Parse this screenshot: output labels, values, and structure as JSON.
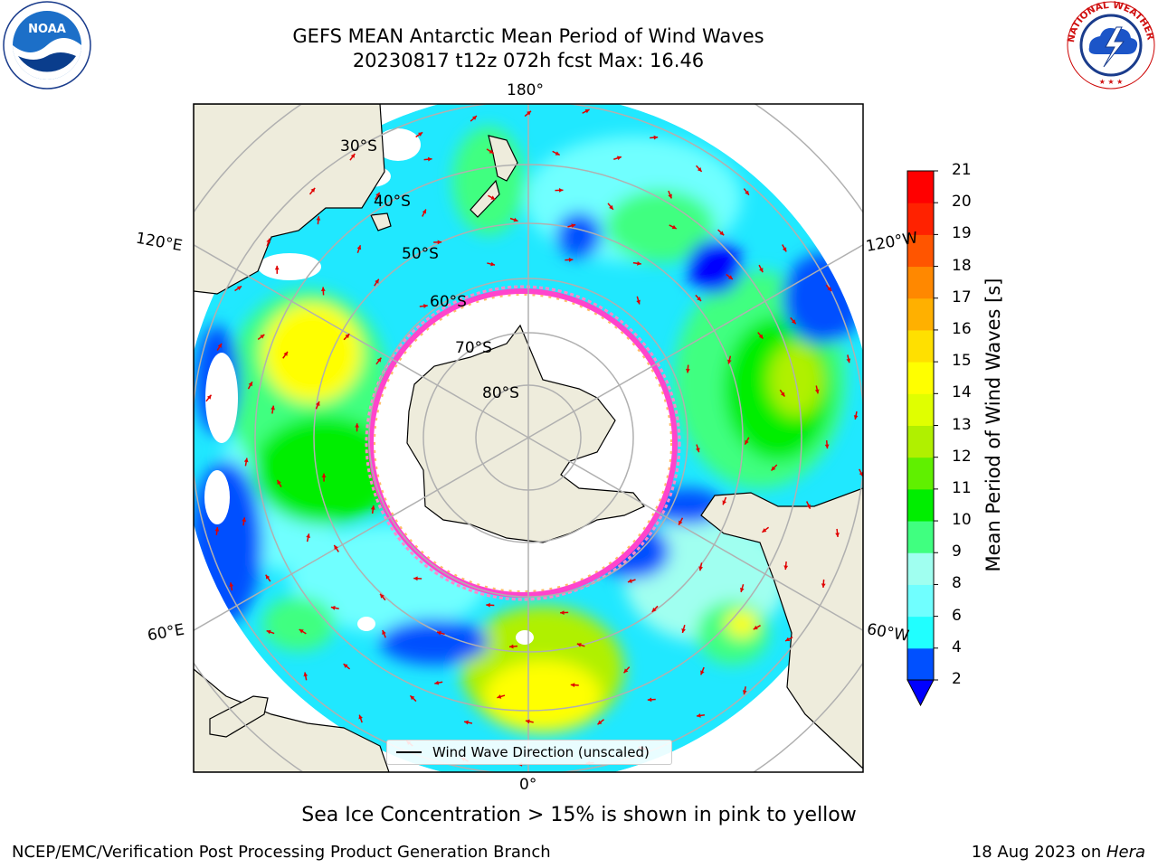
{
  "header": {
    "title_line1": "GEFS MEAN Antarctic Mean Period of Wind Waves",
    "title_line2": "20230817 t12z 072h fcst   Max: 16.46"
  },
  "logos": {
    "left": {
      "name": "noaa-logo",
      "text": "NOAA",
      "ring_text": "NATIONAL OCEANIC AND ATMOSPHERIC ADMINISTRATION · U.S. DEPARTMENT OF COMMERCE"
    },
    "right": {
      "name": "nws-logo",
      "ring_text": "NATIONAL WEATHER SERVICE"
    }
  },
  "map": {
    "projection": "south-polar-stereographic",
    "longitude_labels": {
      "top": "180°",
      "bottom": "0°",
      "upper_left": "120°E",
      "upper_right": "120°W",
      "lower_left": "60°E",
      "lower_right": "60°W"
    },
    "latitude_labels": [
      "30°S",
      "40°S",
      "50°S",
      "60°S",
      "70°S",
      "80°S"
    ],
    "legend_label": "Wind Wave Direction (unscaled)",
    "arrow_color": "#e00000",
    "land_color": "#eeecdc",
    "sea_ice_colors": [
      "#ff44cc",
      "#ff88cc",
      "#ffbb66",
      "#ffee66"
    ]
  },
  "colorbar": {
    "label": "Mean Period of Wind Waves [s]",
    "ticks": [
      "2",
      "4",
      "6",
      "8",
      "9",
      "10",
      "11",
      "12",
      "13",
      "14",
      "15",
      "16",
      "17",
      "18",
      "19",
      "20",
      "21"
    ],
    "colors": [
      "#0050ff",
      "#00e1ff",
      "#20ffff",
      "#70ffff",
      "#a0fff0",
      "#40ff80",
      "#00ee00",
      "#60f000",
      "#b0f000",
      "#e0ff00",
      "#ffff00",
      "#ffe000",
      "#ffb000",
      "#ff8800",
      "#ff5500",
      "#ff2200",
      "#ff0000"
    ],
    "under_color": "#0000ff"
  },
  "footer": {
    "note": "Sea Ice Concentration > 15% is shown in pink to yellow",
    "credit": "NCEP/EMC/Verification Post Processing Product Generation Branch",
    "date_text": "18 Aug 2023 on ",
    "host": "Hera"
  }
}
